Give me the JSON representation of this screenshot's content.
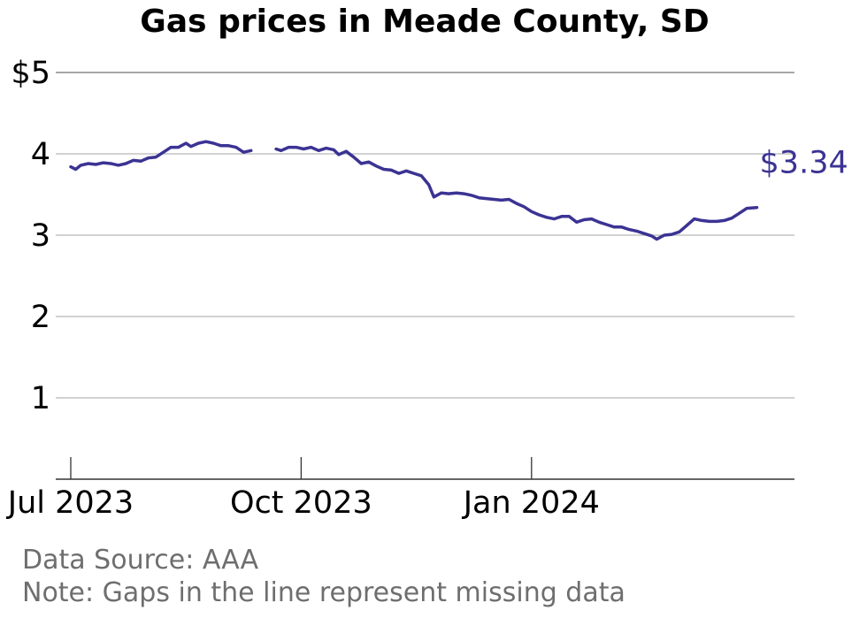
{
  "chart_data": {
    "type": "line",
    "title": "Gas prices in Meade County, SD",
    "xlabel": "",
    "ylabel": "",
    "ylim": [
      0,
      5
    ],
    "y_ticks": [
      {
        "value": 5,
        "label": "$5"
      },
      {
        "value": 4,
        "label": "4"
      },
      {
        "value": 3,
        "label": "3"
      },
      {
        "value": 2,
        "label": "2"
      },
      {
        "value": 1,
        "label": "1"
      }
    ],
    "x_range": [
      "2023-06-25",
      "2024-04-15"
    ],
    "x_ticks": [
      {
        "date": "2023-07-01",
        "label": "Jul 2023"
      },
      {
        "date": "2023-10-01",
        "label": "Oct 2023"
      },
      {
        "date": "2024-01-01",
        "label": "Jan 2024"
      }
    ],
    "grid": "horizontal",
    "line_color": "#3b3393",
    "end_label": "$3.34",
    "series": [
      {
        "segments": [
          [
            [
              "2023-07-01",
              3.84
            ],
            [
              "2023-07-03",
              3.81
            ],
            [
              "2023-07-05",
              3.86
            ],
            [
              "2023-07-08",
              3.88
            ],
            [
              "2023-07-11",
              3.87
            ],
            [
              "2023-07-14",
              3.89
            ],
            [
              "2023-07-17",
              3.88
            ],
            [
              "2023-07-20",
              3.86
            ],
            [
              "2023-07-23",
              3.88
            ],
            [
              "2023-07-26",
              3.92
            ],
            [
              "2023-07-29",
              3.91
            ],
            [
              "2023-08-01",
              3.95
            ],
            [
              "2023-08-04",
              3.96
            ],
            [
              "2023-08-07",
              4.02
            ],
            [
              "2023-08-10",
              4.08
            ],
            [
              "2023-08-13",
              4.08
            ],
            [
              "2023-08-16",
              4.13
            ],
            [
              "2023-08-18",
              4.09
            ],
            [
              "2023-08-21",
              4.13
            ],
            [
              "2023-08-24",
              4.15
            ],
            [
              "2023-08-27",
              4.13
            ],
            [
              "2023-08-30",
              4.1
            ],
            [
              "2023-09-02",
              4.1
            ],
            [
              "2023-09-05",
              4.08
            ],
            [
              "2023-09-08",
              4.02
            ],
            [
              "2023-09-11",
              4.04
            ]
          ],
          [
            [
              "2023-09-21",
              4.06
            ],
            [
              "2023-09-23",
              4.04
            ],
            [
              "2023-09-26",
              4.08
            ],
            [
              "2023-09-29",
              4.08
            ],
            [
              "2023-10-02",
              4.06
            ],
            [
              "2023-10-05",
              4.08
            ],
            [
              "2023-10-08",
              4.04
            ],
            [
              "2023-10-11",
              4.07
            ],
            [
              "2023-10-14",
              4.05
            ],
            [
              "2023-10-16",
              3.99
            ],
            [
              "2023-10-19",
              4.03
            ],
            [
              "2023-10-22",
              3.96
            ],
            [
              "2023-10-25",
              3.88
            ],
            [
              "2023-10-28",
              3.9
            ],
            [
              "2023-10-31",
              3.85
            ],
            [
              "2023-11-03",
              3.81
            ],
            [
              "2023-11-06",
              3.8
            ],
            [
              "2023-11-09",
              3.76
            ],
            [
              "2023-11-12",
              3.79
            ],
            [
              "2023-11-15",
              3.76
            ],
            [
              "2023-11-18",
              3.73
            ],
            [
              "2023-11-21",
              3.62
            ],
            [
              "2023-11-23",
              3.47
            ],
            [
              "2023-11-26",
              3.52
            ],
            [
              "2023-11-29",
              3.51
            ],
            [
              "2023-12-02",
              3.52
            ],
            [
              "2023-12-05",
              3.51
            ],
            [
              "2023-12-08",
              3.49
            ],
            [
              "2023-12-11",
              3.46
            ],
            [
              "2023-12-14",
              3.45
            ],
            [
              "2023-12-17",
              3.44
            ],
            [
              "2023-12-20",
              3.43
            ],
            [
              "2023-12-23",
              3.44
            ],
            [
              "2023-12-26",
              3.39
            ],
            [
              "2023-12-29",
              3.35
            ],
            [
              "2024-01-01",
              3.29
            ],
            [
              "2024-01-04",
              3.25
            ],
            [
              "2024-01-07",
              3.22
            ],
            [
              "2024-01-10",
              3.2
            ],
            [
              "2024-01-13",
              3.23
            ],
            [
              "2024-01-16",
              3.23
            ],
            [
              "2024-01-19",
              3.16
            ],
            [
              "2024-01-22",
              3.19
            ],
            [
              "2024-01-25",
              3.2
            ],
            [
              "2024-01-28",
              3.16
            ],
            [
              "2024-01-31",
              3.13
            ],
            [
              "2024-02-03",
              3.1
            ],
            [
              "2024-02-06",
              3.1
            ],
            [
              "2024-02-09",
              3.07
            ],
            [
              "2024-02-12",
              3.05
            ],
            [
              "2024-02-15",
              3.02
            ],
            [
              "2024-02-18",
              2.99
            ],
            [
              "2024-02-20",
              2.95
            ],
            [
              "2024-02-23",
              3.0
            ],
            [
              "2024-02-26",
              3.01
            ],
            [
              "2024-02-29",
              3.04
            ],
            [
              "2024-03-03",
              3.12
            ],
            [
              "2024-03-06",
              3.2
            ],
            [
              "2024-03-09",
              3.18
            ],
            [
              "2024-03-12",
              3.17
            ],
            [
              "2024-03-15",
              3.17
            ],
            [
              "2024-03-18",
              3.18
            ],
            [
              "2024-03-21",
              3.21
            ],
            [
              "2024-03-24",
              3.27
            ],
            [
              "2024-03-27",
              3.33
            ],
            [
              "2024-03-31",
              3.34
            ]
          ]
        ]
      }
    ]
  },
  "footnotes": {
    "source": "Data Source: AAA",
    "note": "Note: Gaps in the line represent missing data"
  }
}
